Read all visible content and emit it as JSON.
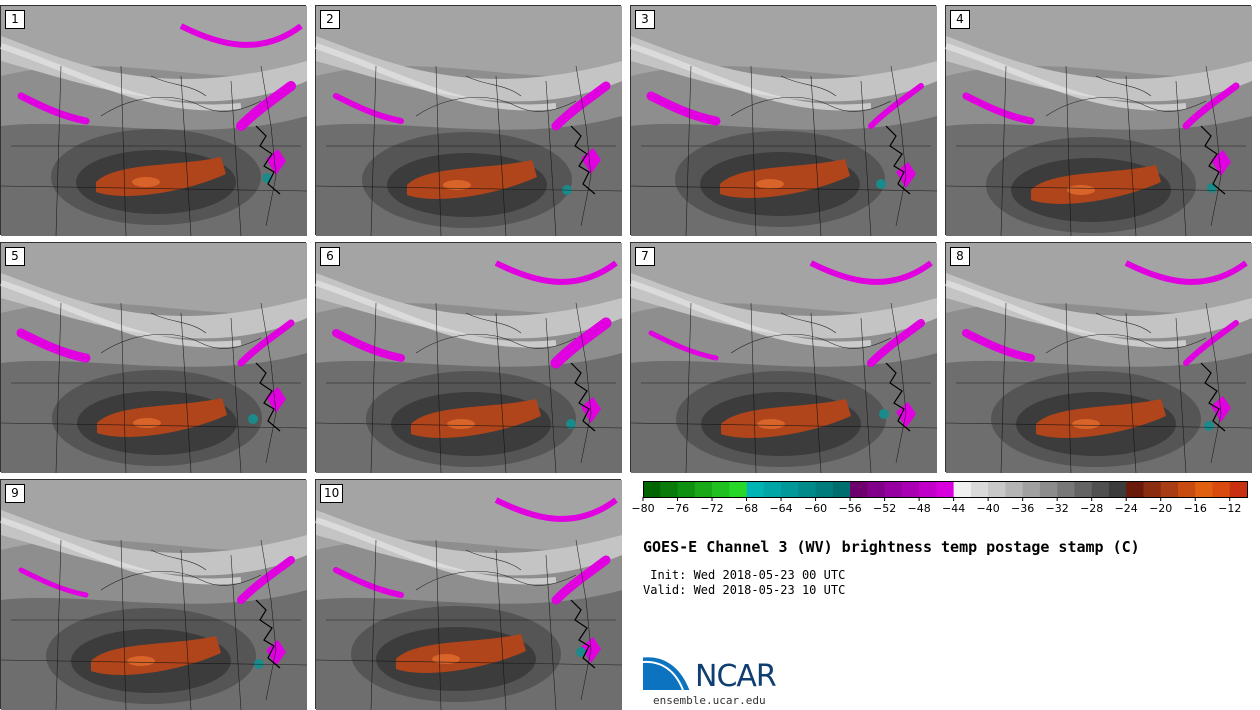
{
  "panels": [
    {
      "label": "1"
    },
    {
      "label": "2"
    },
    {
      "label": "3"
    },
    {
      "label": "4"
    },
    {
      "label": "5"
    },
    {
      "label": "6"
    },
    {
      "label": "7"
    },
    {
      "label": "8"
    },
    {
      "label": "9"
    },
    {
      "label": "10"
    }
  ],
  "colorbar": {
    "tick_labels": [
      "-80",
      "-76",
      "-72",
      "-68",
      "-64",
      "-60",
      "-56",
      "-52",
      "-48",
      "-44",
      "-40",
      "-36",
      "-32",
      "-28",
      "-24",
      "-20",
      "-16",
      "-12"
    ],
    "min": -80,
    "max": -10,
    "step": 2,
    "colors": [
      "#006400",
      "#0a7a0a",
      "#109010",
      "#18a818",
      "#20c020",
      "#28d828",
      "#00b4b4",
      "#00a6a6",
      "#009898",
      "#008a8a",
      "#007c7c",
      "#006e6e",
      "#6e006e",
      "#80008a",
      "#9600a0",
      "#aa00b4",
      "#c000c8",
      "#d800dc",
      "#f0f0f0",
      "#dadada",
      "#c8c8c8",
      "#b4b4b4",
      "#a0a0a0",
      "#8c8c8c",
      "#787878",
      "#646464",
      "#505050",
      "#3c3c3c",
      "#6a1a0a",
      "#8a2c10",
      "#a83c14",
      "#c84c10",
      "#e06010",
      "#d84a10",
      "#c83010"
    ]
  },
  "title": "GOES-E Channel 3 (WV) brightness temp postage stamp (C)",
  "init_line": " Init: Wed 2018-05-23 00 UTC",
  "valid_line": "Valid: Wed 2018-05-23 10 UTC",
  "logo": {
    "text": "NCAR",
    "url": "ensemble.ucar.edu"
  },
  "colors": {
    "magenta": "#e000e0",
    "rust": "#b4441c",
    "dark": "#3a3a3a",
    "teal": "#1a8a8a"
  }
}
